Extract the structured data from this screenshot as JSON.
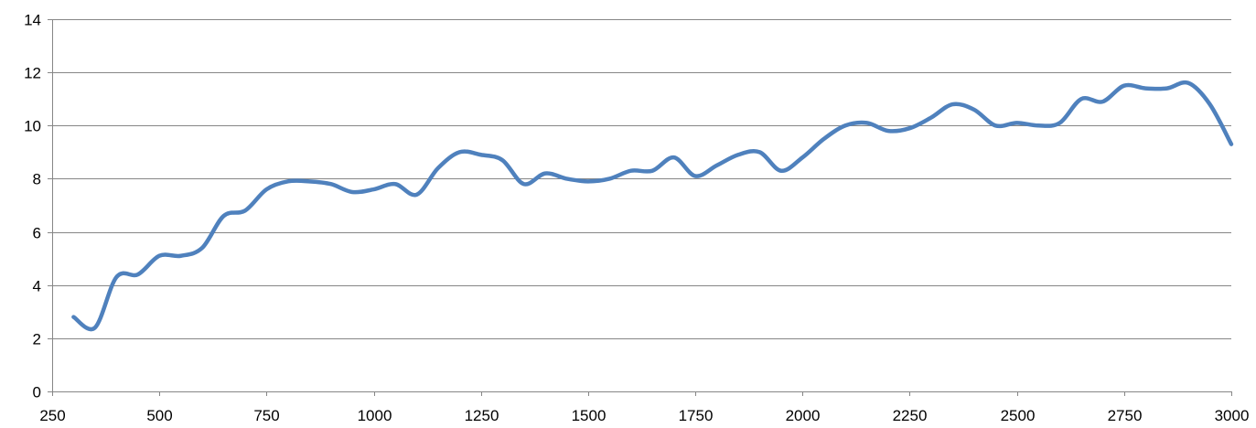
{
  "chart_data": {
    "type": "line",
    "title": "",
    "xlabel": "",
    "ylabel": "",
    "xlim": [
      250,
      3000
    ],
    "ylim": [
      0,
      14
    ],
    "x_ticks": [
      250,
      500,
      750,
      1000,
      1250,
      1500,
      1750,
      2000,
      2250,
      2500,
      2750,
      3000
    ],
    "y_ticks": [
      0,
      2,
      4,
      6,
      8,
      10,
      12,
      14
    ],
    "x_tick_labels": [
      "250",
      "500",
      "750",
      "1000",
      "1250",
      "1500",
      "1750",
      "2000",
      "2250",
      "2500",
      "2750",
      "3000"
    ],
    "y_tick_labels": [
      "0",
      "2",
      "4",
      "6",
      "8",
      "10",
      "12",
      "14"
    ],
    "grid": "horizontal",
    "legend": "none",
    "smooth": true,
    "line_color": "#4F81BD",
    "grid_color": "#868686",
    "series": [
      {
        "x": [
          300,
          350,
          400,
          450,
          500,
          550,
          600,
          650,
          700,
          750,
          800,
          850,
          900,
          950,
          1000,
          1050,
          1100,
          1150,
          1200,
          1250,
          1300,
          1350,
          1400,
          1450,
          1500,
          1550,
          1600,
          1650,
          1700,
          1750,
          1800,
          1850,
          1900,
          1950,
          2000,
          2050,
          2100,
          2150,
          2200,
          2250,
          2300,
          2350,
          2400,
          2450,
          2500,
          2550,
          2600,
          2650,
          2700,
          2750,
          2800,
          2850,
          2900,
          2950,
          3000
        ],
        "values": [
          2.8,
          2.4,
          4.3,
          4.4,
          5.1,
          5.1,
          5.4,
          6.6,
          6.8,
          7.6,
          7.9,
          7.9,
          7.8,
          7.5,
          7.6,
          7.8,
          7.4,
          8.4,
          9.0,
          8.9,
          8.7,
          7.8,
          8.2,
          8.0,
          7.9,
          8.0,
          8.3,
          8.3,
          8.8,
          8.1,
          8.5,
          8.9,
          9.0,
          8.3,
          8.8,
          9.5,
          10.0,
          10.1,
          9.8,
          9.9,
          10.3,
          10.8,
          10.6,
          10.0,
          10.1,
          10.0,
          10.1,
          11.0,
          10.9,
          11.5,
          11.4,
          11.4,
          11.6,
          10.8,
          9.3
        ]
      }
    ]
  }
}
